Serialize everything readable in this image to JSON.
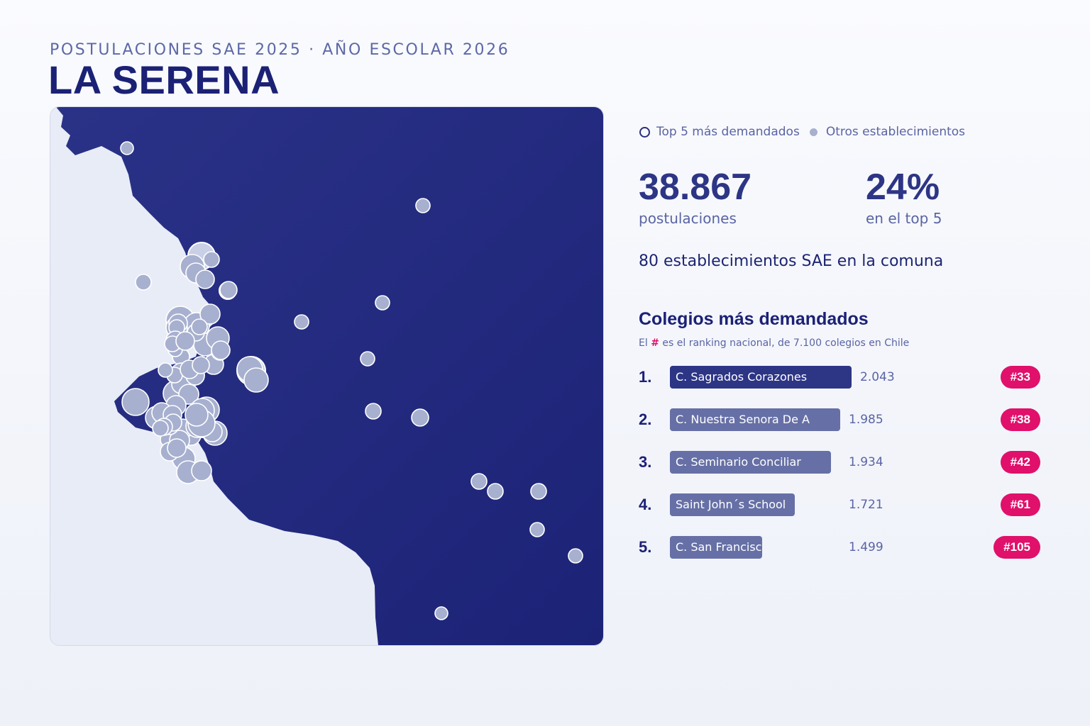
{
  "header": {
    "eyebrow": "POSTULACIONES SAE 2025 · AÑO ESCOLAR 2026",
    "title": "LA SERENA"
  },
  "legend": {
    "top5_label": "Top 5 más demandados",
    "others_label": "Otros establecimientos"
  },
  "stats": {
    "applications_value": "38.867",
    "applications_label": "postulaciones",
    "top5_share_value": "24%",
    "top5_share_label": "en el top 5",
    "establishments_line": "80 establecimientos SAE en la comuna"
  },
  "ranking": {
    "title": "Colegios más demandados",
    "subtitle_prefix": "El",
    "subtitle_hash": "#",
    "subtitle_suffix": "es el ranking nacional, de 7.100 colegios en Chile",
    "items": [
      {
        "rank": "1.",
        "name": "C. Sagrados Corazones",
        "value": "2.043",
        "applications": 2043,
        "national_rank": "#33"
      },
      {
        "rank": "2.",
        "name": "C. Nuestra Senora De A",
        "value": "1.985",
        "applications": 1985,
        "national_rank": "#38"
      },
      {
        "rank": "3.",
        "name": "C. Seminario Conciliar",
        "value": "1.934",
        "applications": 1934,
        "national_rank": "#42"
      },
      {
        "rank": "4.",
        "name": "Saint John´s School",
        "value": "1.721",
        "applications": 1721,
        "national_rank": "#61"
      },
      {
        "rank": "5.",
        "name": "C. San Francisco Coll",
        "value": "1.499",
        "applications": 1499,
        "national_rank": "#105"
      }
    ]
  },
  "colors": {
    "commune_fill": "#222a80",
    "outside_fill": "#e8ecf6",
    "accent_pink": "#e0106b",
    "bar_top": "#2d3585",
    "bar_other": "#6670a6",
    "dot_other": "#a7b0cf"
  }
}
